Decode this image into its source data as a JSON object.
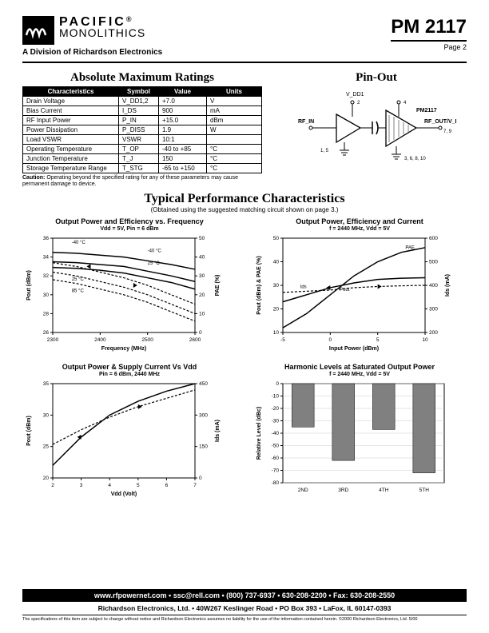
{
  "header": {
    "brand_l1": "PACIFIC",
    "brand_l2": "MONOLITHICS",
    "division": "A Division of Richardson Electronics",
    "part": "PM 2117",
    "page": "Page 2"
  },
  "amr": {
    "title": "Absolute Maximum Ratings",
    "columns": [
      "Characteristics",
      "Symbol",
      "Value",
      "Units"
    ],
    "rows": [
      [
        "Drain Voltage",
        "V_DD1,2",
        "+7.0",
        "V"
      ],
      [
        "Bias Current",
        "I_DS",
        "900",
        "mA"
      ],
      [
        "RF Input Power",
        "P_IN",
        "+15.0",
        "dBm"
      ],
      [
        "Power Dissipation",
        "P_DISS",
        "1.9",
        "W"
      ],
      [
        "Load VSWR",
        "VSWR",
        "10:1",
        ""
      ],
      [
        "Operating Temperature",
        "T_OP",
        "-40 to +85",
        "°C"
      ],
      [
        "Junction Temperature",
        "T_J",
        "150",
        "°C"
      ],
      [
        "Storage Temperature Range",
        "T_STG",
        "-65 to +150",
        "°C"
      ]
    ],
    "caution": "Caution:  Operating beyond the specified rating for any of these parameters may cause permanent damage to device."
  },
  "pinout": {
    "title": "Pin-Out",
    "labels": {
      "vdd1": "V_DD1",
      "vdd2": "V_DD2",
      "rfin": "RF_IN",
      "rfout": "RF_OUT/V_DD2",
      "chip": "PM2117",
      "pins_left": "1, 5",
      "pin_top_left": "2",
      "pin_top_right": "4",
      "pins_right": "7, 9",
      "pins_gnd": "3, 6, 8, 10"
    }
  },
  "tpc": {
    "title": "Typical Performance Characteristics",
    "sub": "(Obtained using the suggested matching circuit shown on page 3.)"
  },
  "chart1": {
    "title": "Output Power and Efficiency vs. Frequency",
    "sub": "Vdd = 5V, Pin = 6 dBm",
    "xlabel": "Frequency (MHz)",
    "y1label": "Pout (dBm)",
    "y2label": "PAE (%)",
    "xlim": [
      2300,
      2600
    ],
    "xticks": [
      2300,
      2400,
      2500,
      2600
    ],
    "y1lim": [
      26,
      36
    ],
    "y1ticks": [
      26,
      28,
      30,
      32,
      34,
      36
    ],
    "y2lim": [
      0,
      50
    ],
    "y2ticks": [
      0,
      10,
      20,
      30,
      40,
      50
    ],
    "temps": [
      "-40 °C",
      "25 °C",
      "85 °C"
    ],
    "pout_series": {
      "-40": [
        [
          2300,
          34.5
        ],
        [
          2350,
          34.4
        ],
        [
          2400,
          34.2
        ],
        [
          2450,
          34.0
        ],
        [
          2500,
          33.6
        ],
        [
          2550,
          33.2
        ],
        [
          2600,
          32.7
        ]
      ],
      "25": [
        [
          2300,
          33.5
        ],
        [
          2350,
          33.4
        ],
        [
          2400,
          33.2
        ],
        [
          2450,
          33.0
        ],
        [
          2500,
          32.5
        ],
        [
          2550,
          32.0
        ],
        [
          2600,
          31.4
        ]
      ],
      "85": [
        [
          2300,
          32.9
        ],
        [
          2350,
          32.8
        ],
        [
          2400,
          32.6
        ],
        [
          2450,
          32.3
        ],
        [
          2500,
          31.8
        ],
        [
          2550,
          31.3
        ],
        [
          2600,
          30.6
        ]
      ]
    },
    "pae_series": {
      "-40": [
        [
          2300,
          37
        ],
        [
          2350,
          35
        ],
        [
          2400,
          32
        ],
        [
          2450,
          29
        ],
        [
          2500,
          25
        ],
        [
          2550,
          20
        ],
        [
          2600,
          15
        ]
      ],
      "25": [
        [
          2300,
          32
        ],
        [
          2350,
          30
        ],
        [
          2400,
          27
        ],
        [
          2450,
          24
        ],
        [
          2500,
          20
        ],
        [
          2550,
          15
        ],
        [
          2600,
          10
        ]
      ],
      "85": [
        [
          2300,
          28
        ],
        [
          2350,
          26
        ],
        [
          2400,
          23
        ],
        [
          2450,
          20
        ],
        [
          2500,
          16
        ],
        [
          2550,
          11
        ],
        [
          2600,
          6
        ]
      ]
    },
    "colors": {
      "line": "#000000",
      "grid": "#999999",
      "bg": "#ffffff"
    },
    "line_width_solid": 1.5,
    "line_width_dash": 1.2
  },
  "chart2": {
    "title": "Output Power, Efficiency and Current",
    "sub": "f = 2440 MHz, Vdd = 5V",
    "xlabel": "Input Power (dBm)",
    "y1label": "Pout (dBm) & PAE (%)",
    "y2label": "Ids (mA)",
    "xlim": [
      -5,
      10
    ],
    "xticks": [
      -5,
      0,
      5,
      10
    ],
    "y1lim": [
      10,
      50
    ],
    "y1ticks": [
      10,
      20,
      30,
      40,
      50
    ],
    "y2lim": [
      200,
      600
    ],
    "y2ticks": [
      200,
      300,
      400,
      500,
      600
    ],
    "series_labels": {
      "pae": "PAE",
      "pout": "Pout",
      "ids": "Ids"
    },
    "pout": [
      [
        -5,
        23
      ],
      [
        -2.5,
        26
      ],
      [
        0,
        29
      ],
      [
        2.5,
        31
      ],
      [
        5,
        32.5
      ],
      [
        7.5,
        33
      ],
      [
        10,
        33.2
      ]
    ],
    "pae": [
      [
        -5,
        12
      ],
      [
        -2.5,
        18
      ],
      [
        0,
        26
      ],
      [
        2.5,
        34
      ],
      [
        5,
        40
      ],
      [
        7.5,
        44
      ],
      [
        10,
        46
      ]
    ],
    "ids": [
      [
        -5,
        370
      ],
      [
        -2.5,
        375
      ],
      [
        0,
        380
      ],
      [
        2.5,
        390
      ],
      [
        5,
        395
      ],
      [
        7.5,
        398
      ],
      [
        10,
        400
      ]
    ],
    "colors": {
      "line": "#000000",
      "grid": "#999999"
    }
  },
  "chart3": {
    "title": "Output Power & Supply Current Vs Vdd",
    "sub": "Pin = 6 dBm, 2440 MHz",
    "xlabel": "Vdd (Volt)",
    "y1label": "Pout (dBm)",
    "y2label": "Ids (mA)",
    "xlim": [
      2,
      7
    ],
    "xticks": [
      2,
      3,
      4,
      5,
      6,
      7
    ],
    "y1lim": [
      20,
      35
    ],
    "y1ticks": [
      20,
      25,
      30,
      35
    ],
    "y2lim": [
      0,
      450
    ],
    "y2ticks": [
      0,
      150,
      300,
      450
    ],
    "pout": [
      [
        2,
        22
      ],
      [
        3,
        26.5
      ],
      [
        4,
        30
      ],
      [
        5,
        32.2
      ],
      [
        6,
        33.8
      ],
      [
        7,
        35
      ]
    ],
    "ids": [
      [
        2,
        160
      ],
      [
        3,
        230
      ],
      [
        4,
        290
      ],
      [
        5,
        340
      ],
      [
        6,
        380
      ],
      [
        7,
        420
      ]
    ],
    "colors": {
      "line": "#000000",
      "grid": "#999999"
    }
  },
  "chart4": {
    "title": "Harmonic Levels at Saturated Output Power",
    "sub": "f = 2440 MHz, Vdd = 5V",
    "xlabel": "",
    "ylabel": "Relative Level (dBc)",
    "ylim": [
      -80,
      0
    ],
    "yticks": [
      -80,
      -70,
      -60,
      -50,
      -40,
      -30,
      -20,
      -10,
      0
    ],
    "categories": [
      "2ND",
      "3RD",
      "4TH",
      "5TH"
    ],
    "values": [
      -35,
      -62,
      -37,
      -72
    ],
    "bar_color": "#808080",
    "grid": "#cccccc"
  },
  "footer": {
    "bar": "www.rfpowernet.com • ssc@rell.com • (800) 737-6937 • 630-208-2200 • Fax: 630-208-2550",
    "addr": "Richardson Electronics, Ltd. • 40W267 Keslinger Road • PO Box 393 • LaFox, IL 60147-0393",
    "fine": "The specifications of this item are subject to change without notice and Richardson Electronics assumes no liability for the use of the information contained herein. ©2000 Richardson Electronics, Ltd. 5/00"
  }
}
